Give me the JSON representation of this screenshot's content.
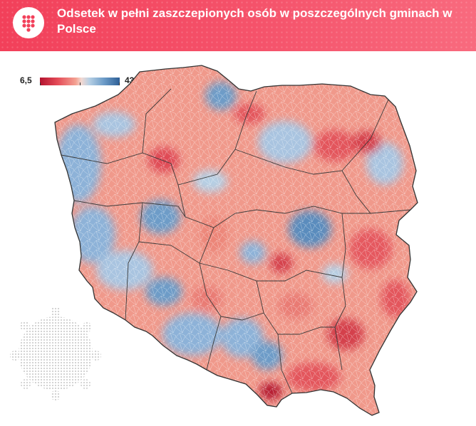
{
  "title": "Odsetek w pełni zaszczepionych osób w poszczególnych gminach w Polsce",
  "legend": {
    "min": "6,5",
    "max": "43,3"
  },
  "colors": {
    "header": "#f2405a",
    "scale": [
      "#b3132e",
      "#e44a57",
      "#f4a293",
      "#f3d9d2",
      "#b6cfe4",
      "#6d9cc8",
      "#2e5f96"
    ],
    "border": "#3a3a3a"
  },
  "icons": {
    "logo": "dot-grid-icon",
    "decoration": "virus-icon"
  }
}
